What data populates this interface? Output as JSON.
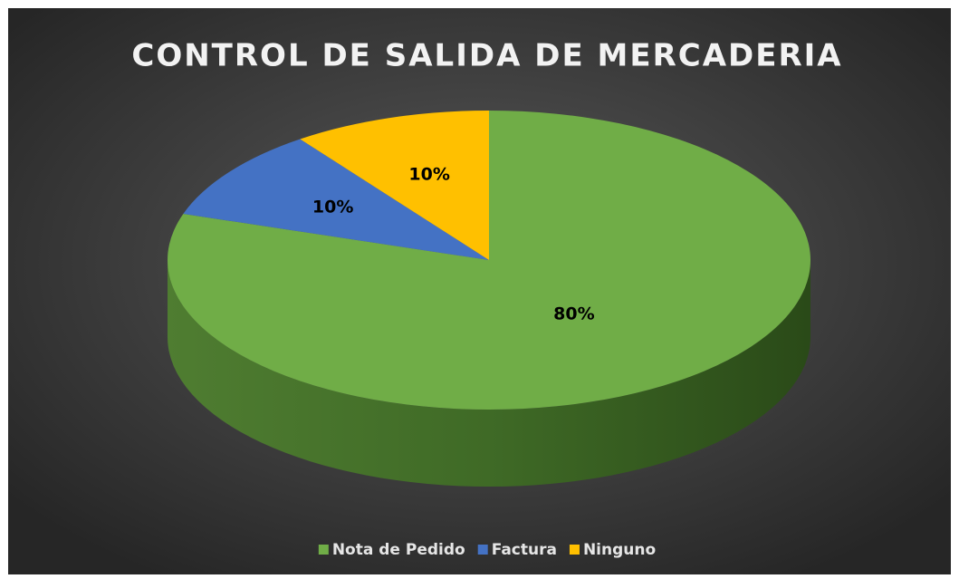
{
  "chart_data": {
    "type": "pie",
    "title": "CONTROL DE SALIDA DE MERCADERIA",
    "categories": [
      "Nota de Pedido",
      "Factura",
      "Ninguno"
    ],
    "values": [
      80,
      10,
      10
    ],
    "value_labels": [
      "80%",
      "10%",
      "10%"
    ],
    "colors": [
      "#70ad47",
      "#4472c4",
      "#ffc000"
    ],
    "legend": "bottom"
  }
}
